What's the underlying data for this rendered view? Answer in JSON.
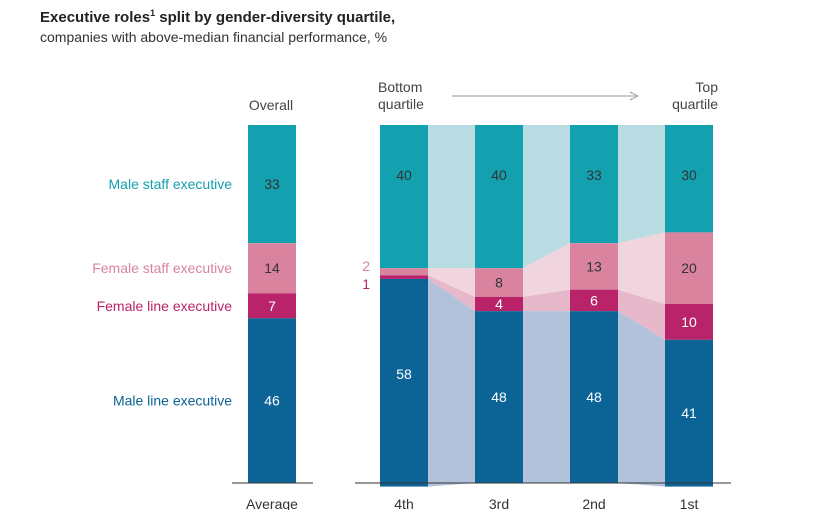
{
  "header": {
    "title": "Executive roles",
    "title_footnote": "1",
    "title_suffix": " split by gender-diversity quartile,",
    "subtitle": "companies with above-median financial performance, %"
  },
  "labels": {
    "overall": "Overall",
    "bottom_line1": "Bottom",
    "bottom_line2": "quartile",
    "top_line1": "Top",
    "top_line2": "quartile"
  },
  "colors": {
    "male_staff": "#13a0af",
    "female_staff": "#d9839f",
    "female_line": "#b9236a",
    "male_line": "#0c6396",
    "male_staff_band": "#b8dce1",
    "female_staff_band": "#f1d5de",
    "female_line_band": "#e7b7ca",
    "male_line_band": "#b3c2db"
  },
  "chart_data": [
    {
      "type": "bar",
      "stacked": true,
      "title": "Overall",
      "categories": [
        "Average"
      ],
      "series": [
        {
          "name": "Male staff executive",
          "values": [
            33
          ]
        },
        {
          "name": "Female staff executive",
          "values": [
            14
          ]
        },
        {
          "name": "Female line executive",
          "values": [
            7
          ]
        },
        {
          "name": "Male line executive",
          "values": [
            46
          ]
        }
      ]
    },
    {
      "type": "bar",
      "stacked": true,
      "categories": [
        "4th",
        "3rd",
        "2nd",
        "1st"
      ],
      "series": [
        {
          "name": "Male staff executive",
          "values": [
            40,
            40,
            33,
            30
          ]
        },
        {
          "name": "Female staff executive",
          "values": [
            2,
            8,
            13,
            20
          ]
        },
        {
          "name": "Female line executive",
          "values": [
            1,
            4,
            6,
            10
          ]
        },
        {
          "name": "Male line executive",
          "values": [
            58,
            48,
            48,
            41
          ]
        }
      ]
    }
  ]
}
